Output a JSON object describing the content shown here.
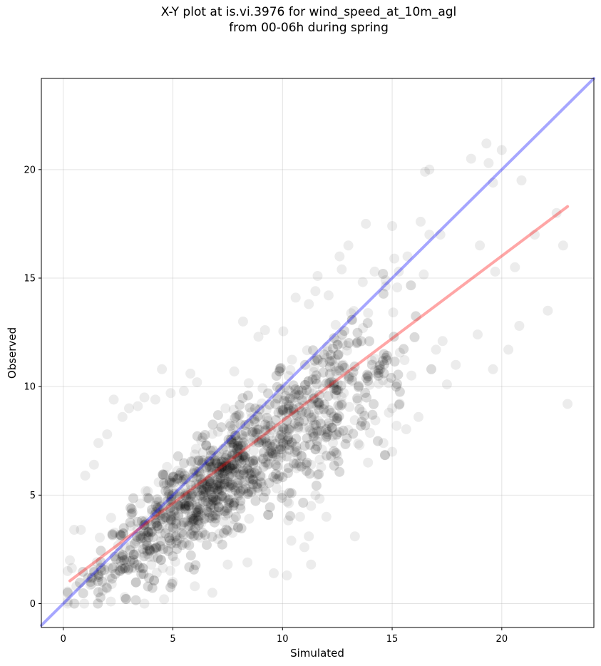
{
  "title_line1": "X-Y plot at is.vi.3976 for wind_speed_at_10m_agl",
  "title_line2": "from 00-06h during spring",
  "chart_data": {
    "type": "scatter",
    "title": "X-Y plot at is.vi.3976 for wind_speed_at_10m_agl\nfrom 00-06h during spring",
    "xlabel": "Simulated",
    "ylabel": "Observed",
    "xlim": [
      -1.0,
      24.2
    ],
    "ylim": [
      -1.1,
      24.2
    ],
    "xticks": [
      0,
      5,
      10,
      15,
      20
    ],
    "yticks": [
      0,
      5,
      10,
      15,
      20
    ],
    "grid": true,
    "legend": "none",
    "colors": {
      "points": "#000000",
      "one_to_one": "#0000ff",
      "fit": "#ff0000"
    },
    "lines": [
      {
        "role": "1:1 line",
        "x": [
          -1.0,
          24.2
        ],
        "y": [
          -1.0,
          24.2
        ]
      },
      {
        "role": "fit line",
        "x": [
          0.3,
          23.0
        ],
        "y": [
          1.05,
          18.3
        ]
      }
    ],
    "point_count": 2000,
    "points": [
      [
        23.0,
        9.2
      ],
      [
        22.1,
        13.5
      ],
      [
        22.5,
        18.0
      ],
      [
        22.8,
        16.5
      ],
      [
        21.5,
        17.0
      ],
      [
        20.8,
        12.8
      ],
      [
        20.3,
        11.7
      ],
      [
        20.6,
        15.5
      ],
      [
        20.9,
        19.5
      ],
      [
        20.0,
        20.9
      ],
      [
        19.6,
        19.4
      ],
      [
        19.4,
        20.3
      ],
      [
        19.3,
        21.2
      ],
      [
        18.6,
        20.5
      ],
      [
        19.0,
        16.5
      ],
      [
        19.7,
        15.3
      ],
      [
        19.6,
        10.8
      ],
      [
        18.9,
        12.4
      ],
      [
        17.9,
        11.0
      ],
      [
        16.7,
        20.0
      ],
      [
        16.5,
        19.9
      ],
      [
        16.7,
        17.0
      ],
      [
        16.3,
        17.6
      ],
      [
        15.0,
        17.4
      ],
      [
        17.2,
        17.0
      ],
      [
        17.3,
        12.1
      ],
      [
        17.0,
        11.7
      ],
      [
        17.5,
        10.1
      ],
      [
        16.2,
        8.6
      ],
      [
        15.0,
        9.0
      ],
      [
        15.0,
        7.0
      ],
      [
        14.6,
        7.4
      ],
      [
        15.2,
        8.2
      ],
      [
        13.9,
        6.5
      ],
      [
        13.0,
        8.0
      ],
      [
        11.8,
        7.1
      ],
      [
        11.3,
        6.4
      ],
      [
        11.5,
        5.0
      ],
      [
        11.3,
        4.5
      ],
      [
        10.4,
        2.9
      ],
      [
        11.0,
        2.6
      ],
      [
        11.3,
        1.8
      ],
      [
        11.2,
        3.1
      ],
      [
        10.8,
        4.0
      ],
      [
        10.0,
        5.0
      ],
      [
        9.4,
        7.0
      ],
      [
        9.6,
        1.4
      ],
      [
        10.2,
        1.3
      ],
      [
        13.3,
        3.1
      ],
      [
        12.0,
        4.0
      ],
      [
        11.5,
        14.4
      ],
      [
        11.6,
        15.1
      ],
      [
        12.7,
        15.4
      ],
      [
        14.7,
        14.9
      ],
      [
        14.2,
        15.3
      ],
      [
        13.8,
        17.5
      ],
      [
        15.1,
        15.9
      ],
      [
        15.3,
        15.3
      ],
      [
        15.7,
        16.0
      ],
      [
        13.0,
        16.5
      ],
      [
        12.6,
        16.0
      ],
      [
        12.1,
        14.2
      ],
      [
        11.2,
        13.8
      ],
      [
        10.6,
        14.1
      ],
      [
        9.2,
        12.6
      ],
      [
        8.9,
        12.3
      ],
      [
        8.2,
        13.0
      ],
      [
        7.8,
        10.7
      ],
      [
        7.4,
        9.0
      ],
      [
        6.1,
        10.2
      ],
      [
        5.8,
        10.6
      ],
      [
        5.5,
        9.8
      ],
      [
        4.9,
        9.7
      ],
      [
        4.5,
        10.8
      ],
      [
        4.2,
        9.4
      ],
      [
        3.7,
        9.5
      ],
      [
        3.4,
        9.1
      ],
      [
        3.0,
        9.0
      ],
      [
        2.7,
        8.6
      ],
      [
        2.3,
        9.4
      ],
      [
        2.0,
        7.8
      ],
      [
        1.6,
        7.4
      ],
      [
        1.4,
        6.4
      ],
      [
        1.0,
        5.9
      ],
      [
        0.8,
        3.4
      ],
      [
        0.5,
        3.4
      ],
      [
        0.3,
        2.0
      ],
      [
        0.2,
        1.5
      ],
      [
        0.2,
        0.1
      ],
      [
        0.6,
        0.8
      ],
      [
        1.3,
        0.9
      ],
      [
        2.0,
        0.7
      ],
      [
        2.8,
        0.3
      ],
      [
        3.7,
        0.0
      ],
      [
        4.6,
        0.2
      ],
      [
        5.0,
        1.0
      ],
      [
        6.0,
        0.8
      ],
      [
        6.8,
        0.5
      ],
      [
        7.5,
        1.8
      ],
      [
        8.4,
        1.9
      ]
    ]
  }
}
